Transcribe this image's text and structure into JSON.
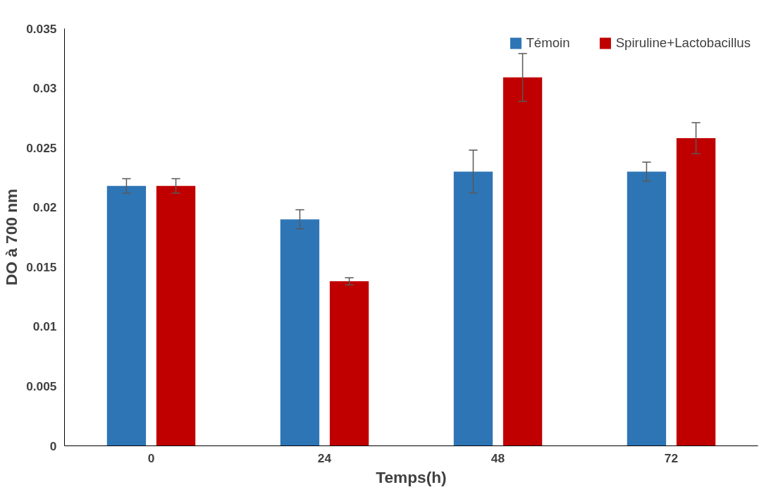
{
  "chart_data": {
    "type": "bar",
    "xlabel": "Temps(h)",
    "ylabel": "DO à 700 nm",
    "categories": [
      "0",
      "24",
      "48",
      "72"
    ],
    "series": [
      {
        "name": "Témoin",
        "color": "#2e75b6",
        "values": [
          0.0218,
          0.019,
          0.023,
          0.023
        ],
        "errors": [
          0.0006,
          0.0008,
          0.0018,
          0.0008
        ]
      },
      {
        "name": "Spiruline+Lactobacillus",
        "color": "#c00000",
        "values": [
          0.0218,
          0.0138,
          0.0309,
          0.0258
        ],
        "errors": [
          0.0006,
          0.0003,
          0.002,
          0.0013
        ]
      }
    ],
    "ylim": [
      0,
      0.035
    ],
    "yticks": [
      0,
      0.005,
      0.01,
      0.015,
      0.02,
      0.025,
      0.03,
      0.035
    ],
    "grid": false,
    "legend": "top right"
  }
}
